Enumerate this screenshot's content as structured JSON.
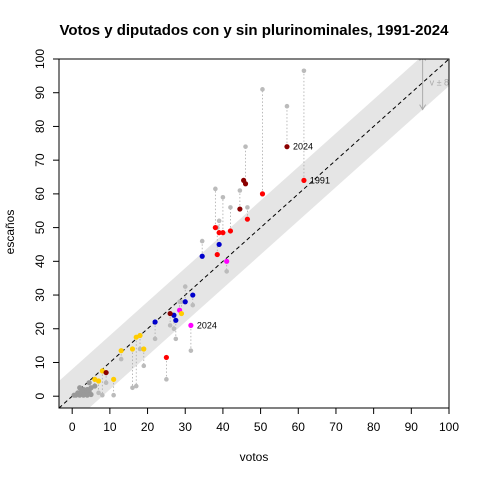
{
  "chart_data": {
    "type": "scatter",
    "title": "Votos y diputados con y sin plurinominales, 1991-2024",
    "xlabel": "votos",
    "ylabel": "escaños",
    "xlim": [
      -3.5,
      100
    ],
    "ylim": [
      -3.5,
      100
    ],
    "xticks": [
      0,
      10,
      20,
      30,
      40,
      50,
      60,
      70,
      80,
      90,
      100
    ],
    "yticks": [
      0,
      10,
      20,
      30,
      40,
      50,
      60,
      70,
      80,
      90,
      100
    ],
    "reference_line": "y = x",
    "band_halfwidth": 8,
    "band_label": "v ± 8%",
    "colors": {
      "band": "#e5e5e5",
      "band_arrow": "#aaaaaa",
      "gray_point": "#bbbbbb",
      "connector": "#aaaaaa",
      "small_party": "#999999",
      "PRI": "#ff0000",
      "MORENA": "#8b0000",
      "PAN": "#0000cc",
      "PRD": "#ffcc00",
      "other": "#ff00ff"
    },
    "points": [
      {
        "x": 61.5,
        "y": 64,
        "y_without_pr": 96.5,
        "color": "PRI",
        "label": "1991"
      },
      {
        "x": 57,
        "y": 74,
        "y_without_pr": 86,
        "color": "MORENA",
        "label": "2024"
      },
      {
        "x": 50.5,
        "y": 60,
        "y_without_pr": 91,
        "color": "PRI"
      },
      {
        "x": 46,
        "y": 63,
        "y_without_pr": 74,
        "color": "MORENA"
      },
      {
        "x": 45.5,
        "y": 64,
        "y_without_pr": 64,
        "color": "MORENA"
      },
      {
        "x": 44.5,
        "y": 55.5,
        "y_without_pr": 61,
        "color": "MORENA"
      },
      {
        "x": 46.5,
        "y": 52.5,
        "y_without_pr": 56,
        "color": "PRI"
      },
      {
        "x": 42,
        "y": 49,
        "y_without_pr": 56,
        "color": "PRI"
      },
      {
        "x": 40,
        "y": 48.5,
        "y_without_pr": 59,
        "color": "PRI"
      },
      {
        "x": 39,
        "y": 48.5,
        "y_without_pr": 52,
        "color": "PRI"
      },
      {
        "x": 38,
        "y": 50,
        "y_without_pr": 61.5,
        "color": "PRI"
      },
      {
        "x": 38.5,
        "y": 42,
        "y_without_pr": 50,
        "color": "PRI"
      },
      {
        "x": 39,
        "y": 45,
        "y_without_pr": 45,
        "color": "PAN"
      },
      {
        "x": 34.5,
        "y": 41.5,
        "y_without_pr": 46,
        "color": "PAN"
      },
      {
        "x": 41,
        "y": 40,
        "y_without_pr": 37,
        "color": "other"
      },
      {
        "x": 32,
        "y": 30,
        "y_without_pr": 27,
        "color": "PAN"
      },
      {
        "x": 30,
        "y": 28,
        "y_without_pr": 32.5,
        "color": "PAN"
      },
      {
        "x": 28.5,
        "y": 25.5,
        "y_without_pr": 28,
        "color": "other"
      },
      {
        "x": 29,
        "y": 24.5,
        "y_without_pr": 28,
        "color": "PRD"
      },
      {
        "x": 27,
        "y": 24,
        "y_without_pr": 20,
        "color": "PAN"
      },
      {
        "x": 26,
        "y": 24.5,
        "y_without_pr": 21,
        "color": "MORENA"
      },
      {
        "x": 27.5,
        "y": 22.5,
        "y_without_pr": 17,
        "color": "PAN"
      },
      {
        "x": 22,
        "y": 22,
        "y_without_pr": 17,
        "color": "PAN"
      },
      {
        "x": 18,
        "y": 18,
        "y_without_pr": 14,
        "color": "PRD"
      },
      {
        "x": 17,
        "y": 17.5,
        "y_without_pr": 3,
        "color": "PRD"
      },
      {
        "x": 16,
        "y": 14,
        "y_without_pr": 2.5,
        "color": "PRD"
      },
      {
        "x": 13,
        "y": 13.5,
        "y_without_pr": 11,
        "color": "PRD"
      },
      {
        "x": 19,
        "y": 14,
        "y_without_pr": 9,
        "color": "PRD"
      },
      {
        "x": 25,
        "y": 11.5,
        "y_without_pr": 5,
        "color": "PRI"
      },
      {
        "x": 31.5,
        "y": 21,
        "y_without_pr": 13.5,
        "color": "other",
        "label": "2024"
      },
      {
        "x": 11,
        "y": 5,
        "y_without_pr": 0.3,
        "color": "PRD"
      },
      {
        "x": 8,
        "y": 7.5,
        "y_without_pr": 0.3,
        "color": "PRD"
      },
      {
        "x": 9,
        "y": 7,
        "y_without_pr": 4,
        "color": "MORENA"
      },
      {
        "x": 6,
        "y": 5,
        "y_without_pr": 3,
        "color": "PRD"
      },
      {
        "x": 7,
        "y": 4.5,
        "y_without_pr": 1,
        "color": "PRD"
      }
    ],
    "small_parties": [
      {
        "x": 2,
        "y": 2.5
      },
      {
        "x": 2.5,
        "y": 1.5
      },
      {
        "x": 3,
        "y": 2
      },
      {
        "x": 4,
        "y": 2
      },
      {
        "x": 4.5,
        "y": 1.5
      },
      {
        "x": 5,
        "y": 2.5
      },
      {
        "x": 3.5,
        "y": 1
      },
      {
        "x": 1.5,
        "y": 1
      },
      {
        "x": 6,
        "y": 3
      },
      {
        "x": 5,
        "y": 0.5
      },
      {
        "x": 2,
        "y": 0.3
      },
      {
        "x": 3,
        "y": 0.3
      },
      {
        "x": 4,
        "y": 0.3
      },
      {
        "x": 1,
        "y": 0.3
      },
      {
        "x": 0.5,
        "y": 0.3
      },
      {
        "x": 4.5,
        "y": 4
      }
    ]
  }
}
